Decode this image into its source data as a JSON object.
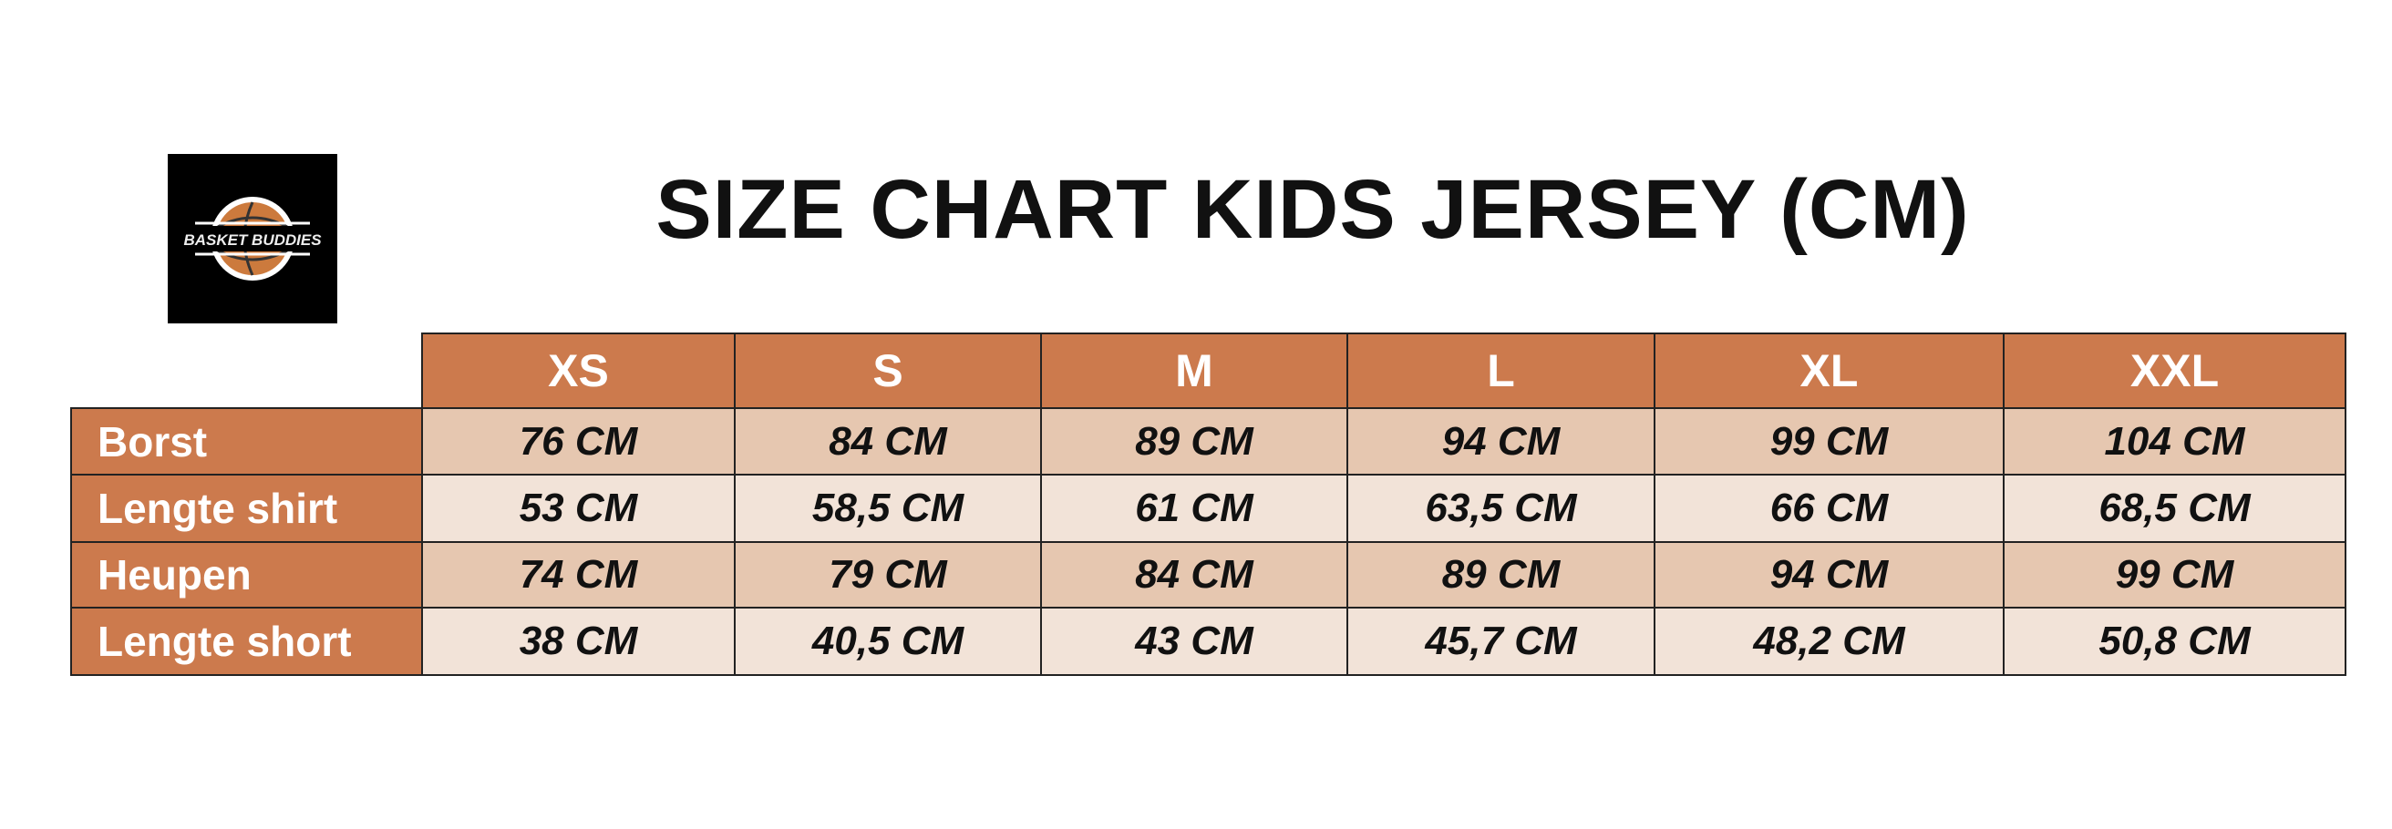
{
  "logo": {
    "text": "BASKET BUDDIES",
    "colors": {
      "background": "#000000",
      "ball": "#cc7a3d"
    }
  },
  "title": "SIZE CHART KIDS JERSEY (CM)",
  "table": {
    "header_color": "#cc7a4d",
    "sizes": [
      "XS",
      "S",
      "M",
      "L",
      "XL",
      "XXL"
    ],
    "rows": [
      {
        "label": "Borst",
        "values": [
          "76 CM",
          "84 CM",
          "89 CM",
          "94 CM",
          "99 CM",
          "104 CM"
        ]
      },
      {
        "label": "Lengte shirt",
        "values": [
          "53 CM",
          "58,5 CM",
          "61 CM",
          "63,5 CM",
          "66 CM",
          "68,5 CM"
        ]
      },
      {
        "label": "Heupen",
        "values": [
          "74 CM",
          "79 CM",
          "84 CM",
          "89 CM",
          "94 CM",
          "99 CM"
        ]
      },
      {
        "label": "Lengte short",
        "values": [
          "38 CM",
          "40,5 CM",
          "43 CM",
          "45,7 CM",
          "48,2 CM",
          "50,8 CM"
        ]
      }
    ]
  }
}
